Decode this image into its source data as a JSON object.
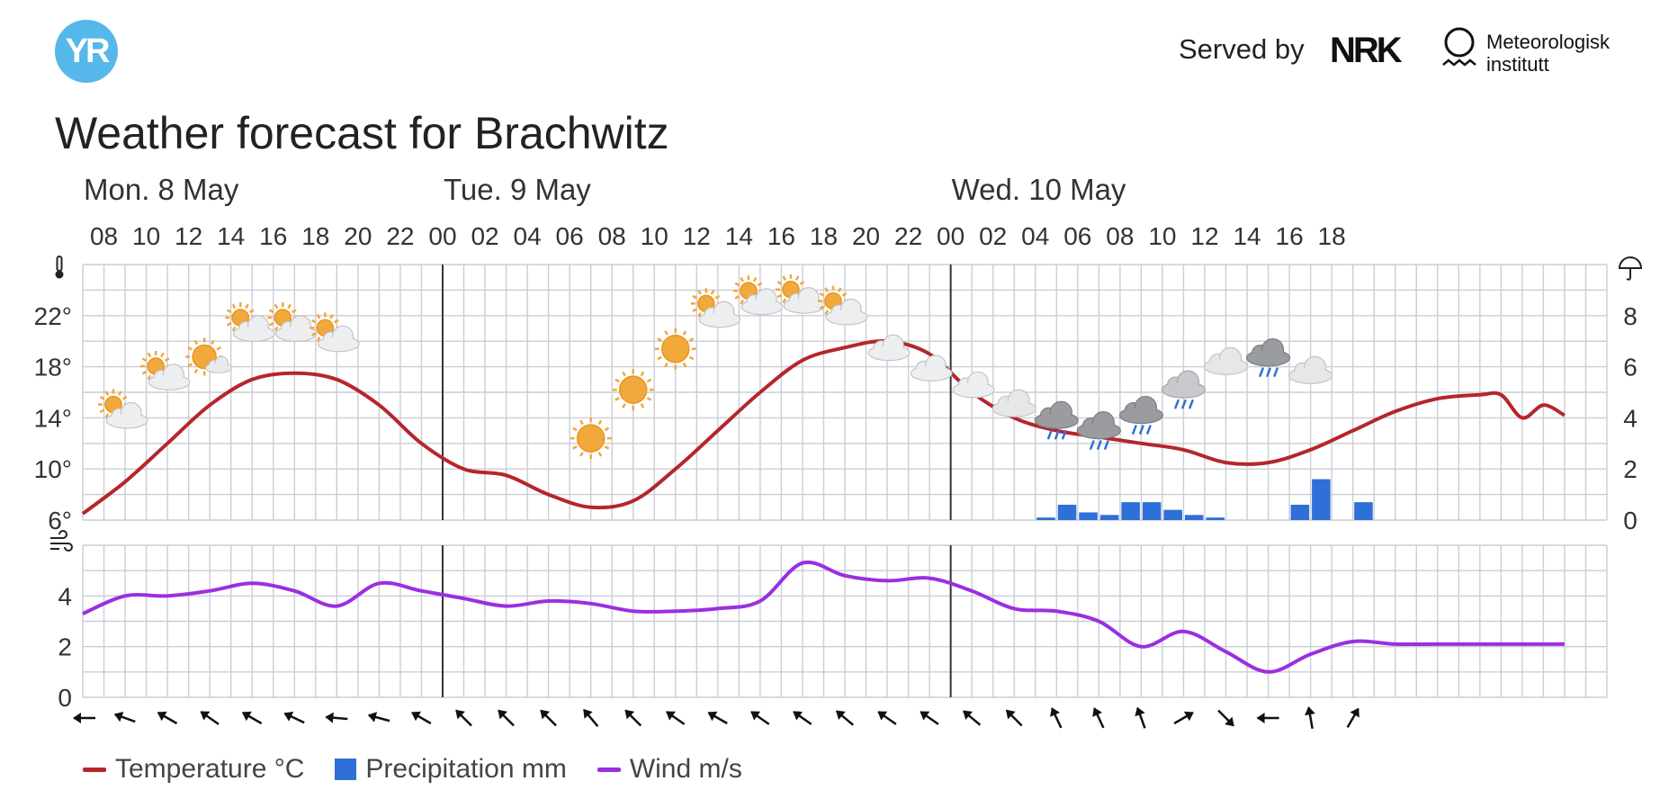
{
  "header": {
    "logo_text": "YR",
    "served_by": "Served by",
    "nrk_logo": "NRK",
    "met_name_line1": "Meteorologisk",
    "met_name_line2": "institutt"
  },
  "title": "Weather forecast for Brachwitz",
  "colors": {
    "temperature": "#b5262a",
    "precipitation": "#2f6fd8",
    "wind": "#9b2fe0",
    "grid": "#c9ced6",
    "day_separator": "#333333",
    "logo": "#55b7ea"
  },
  "chart_data": [
    {
      "type": "line",
      "title": "",
      "days": [
        {
          "label": "Mon. 8 May",
          "start_hour_index": 0
        },
        {
          "label": "Tue. 9 May",
          "start_hour_index": 17
        },
        {
          "label": "Wed. 10 May",
          "start_hour_index": 41
        }
      ],
      "hour_labels": [
        "08",
        "10",
        "12",
        "14",
        "16",
        "18",
        "20",
        "22",
        "00",
        "02",
        "04",
        "06",
        "08",
        "10",
        "12",
        "14",
        "16",
        "18",
        "20",
        "22",
        "00",
        "02",
        "04",
        "06",
        "08",
        "10",
        "12",
        "14",
        "16",
        "18"
      ],
      "y_left_ticks": [
        "6°",
        "10°",
        "14°",
        "18°",
        "22°"
      ],
      "y_left_range": [
        6,
        26
      ],
      "y_right_ticks": [
        "0",
        "2",
        "4",
        "6",
        "8"
      ],
      "y_right_range": [
        0,
        10
      ],
      "temperature_icon": "thermometer-icon",
      "precipitation_icon": "umbrella-icon",
      "series": [
        {
          "name": "Temperature °C",
          "unit": "°C",
          "x_hours_from_start": [
            0,
            2,
            4,
            6,
            8,
            10,
            12,
            14,
            16,
            18,
            20,
            22,
            24,
            26,
            28,
            30,
            32,
            34,
            36,
            38,
            40,
            42,
            44,
            46,
            48,
            50,
            52,
            54,
            56,
            58,
            60,
            62,
            64,
            66,
            67,
            68,
            69,
            70
          ],
          "values": [
            6.5,
            9,
            12,
            15,
            17,
            17.5,
            17,
            15,
            12,
            10,
            9.5,
            8,
            7,
            7.5,
            10,
            13,
            16,
            18.5,
            19.5,
            20,
            19,
            16,
            14,
            13,
            12.5,
            12,
            11.5,
            10.5,
            10.5,
            11.5,
            13,
            14.5,
            15.5,
            15.8,
            15.8,
            14,
            15,
            14.2
          ]
        },
        {
          "name": "Precipitation mm",
          "unit": "mm",
          "bars_hour_index": [
            45,
            46,
            47,
            48,
            49,
            50,
            51,
            52,
            53,
            54,
            55,
            56,
            57,
            58,
            59,
            60
          ],
          "values": [
            0.1,
            0.6,
            0.3,
            0.2,
            0.7,
            0.7,
            0.4,
            0.2,
            0.1,
            0,
            0,
            0,
            0.6,
            1.6,
            0,
            0.7
          ]
        }
      ]
    },
    {
      "type": "line",
      "title": "",
      "wind_icon": "wind-icon",
      "y_ticks": [
        "0",
        "2",
        "4"
      ],
      "y_range": [
        0,
        6
      ],
      "series": [
        {
          "name": "Wind m/s",
          "unit": "m/s",
          "x_hours_from_start": [
            0,
            2,
            4,
            6,
            8,
            10,
            12,
            14,
            16,
            18,
            20,
            22,
            24,
            26,
            28,
            30,
            32,
            34,
            36,
            38,
            40,
            42,
            44,
            46,
            48,
            50,
            52,
            54,
            56,
            58,
            60,
            62,
            64,
            66,
            68,
            70
          ],
          "values": [
            3.3,
            4,
            4,
            4.2,
            4.5,
            4.2,
            3.6,
            4.5,
            4.2,
            3.9,
            3.6,
            3.8,
            3.7,
            3.4,
            3.4,
            3.5,
            3.8,
            5.3,
            4.8,
            4.6,
            4.7,
            4.2,
            3.5,
            3.4,
            3,
            2,
            2.6,
            1.8,
            1,
            1.7,
            2.2,
            2.1,
            2.1,
            2.1,
            2.1,
            2.1
          ]
        }
      ]
    }
  ],
  "weather_symbols": [
    {
      "hour_index": 1,
      "temp": 14.2,
      "icon": "partly-cloudy-day-icon"
    },
    {
      "hour_index": 3,
      "temp": 17.2,
      "icon": "partly-cloudy-day-icon"
    },
    {
      "hour_index": 5,
      "temp": 18.5,
      "icon": "fair-day-icon"
    },
    {
      "hour_index": 7,
      "temp": 21.0,
      "icon": "partly-cloudy-day-icon"
    },
    {
      "hour_index": 9,
      "temp": 21.0,
      "icon": "partly-cloudy-day-icon"
    },
    {
      "hour_index": 11,
      "temp": 20.2,
      "icon": "partly-cloudy-day-icon"
    },
    {
      "hour_index": 13,
      "temp": 17.6,
      "icon": "clear-night-icon"
    },
    {
      "hour_index": 15,
      "temp": 15.1,
      "icon": "clear-night-icon"
    },
    {
      "hour_index": 17,
      "temp": 13.4,
      "icon": "clear-night-icon"
    },
    {
      "hour_index": 19,
      "temp": 11.8,
      "icon": "clear-night-icon"
    },
    {
      "hour_index": 21,
      "temp": 10.6,
      "icon": "clear-night-icon"
    },
    {
      "hour_index": 23,
      "temp": 12.4,
      "icon": "clear-day-icon"
    },
    {
      "hour_index": 25,
      "temp": 16.2,
      "icon": "clear-day-icon"
    },
    {
      "hour_index": 27,
      "temp": 19.4,
      "icon": "clear-day-icon"
    },
    {
      "hour_index": 29,
      "temp": 22.1,
      "icon": "partly-cloudy-day-icon"
    },
    {
      "hour_index": 31,
      "temp": 23.1,
      "icon": "partly-cloudy-day-icon"
    },
    {
      "hour_index": 33,
      "temp": 23.2,
      "icon": "partly-cloudy-day-icon"
    },
    {
      "hour_index": 35,
      "temp": 22.3,
      "icon": "partly-cloudy-day-icon"
    },
    {
      "hour_index": 37,
      "temp": 19.5,
      "icon": "partly-cloudy-night-icon"
    },
    {
      "hour_index": 39,
      "temp": 17.9,
      "icon": "partly-cloudy-night-icon"
    },
    {
      "hour_index": 41,
      "temp": 16.6,
      "icon": "partly-cloudy-night-icon"
    },
    {
      "hour_index": 43,
      "temp": 15.0,
      "icon": "cloudy-icon"
    },
    {
      "hour_index": 45,
      "temp": 13.8,
      "icon": "light-rain-icon"
    },
    {
      "hour_index": 47,
      "temp": 13.0,
      "icon": "light-rain-icon"
    },
    {
      "hour_index": 49,
      "temp": 14.2,
      "icon": "light-rain-icon"
    },
    {
      "hour_index": 51,
      "temp": 16.2,
      "icon": "light-rain-showers-icon"
    },
    {
      "hour_index": 53,
      "temp": 18.3,
      "icon": "cloudy-icon"
    },
    {
      "hour_index": 55,
      "temp": 18.7,
      "icon": "light-rain-icon"
    },
    {
      "hour_index": 57,
      "temp": 17.6,
      "icon": "cloudy-icon"
    }
  ],
  "wind_directions_deg": [
    270,
    290,
    300,
    305,
    300,
    295,
    275,
    285,
    300,
    315,
    315,
    315,
    320,
    315,
    305,
    300,
    305,
    305,
    310,
    305,
    305,
    310,
    315,
    335,
    335,
    340,
    60,
    135,
    270,
    350,
    30
  ],
  "legend": [
    {
      "label": "Temperature °C",
      "color_key": "temperature",
      "shape": "line"
    },
    {
      "label": "Precipitation mm",
      "color_key": "precipitation",
      "shape": "box"
    },
    {
      "label": "Wind m/s",
      "color_key": "wind",
      "shape": "line"
    }
  ]
}
